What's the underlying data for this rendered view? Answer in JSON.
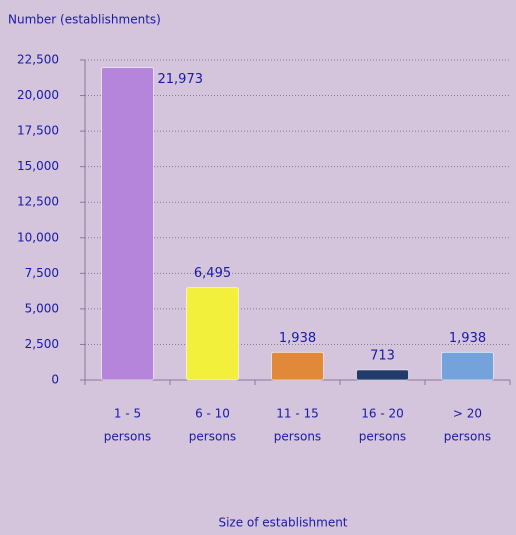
{
  "chart_data": {
    "type": "bar",
    "y_axis_label": "Number (establishments)",
    "x_axis_label": "Size of establishment",
    "categories": [
      [
        "1 - 5",
        "persons"
      ],
      [
        "6 - 10",
        "persons"
      ],
      [
        "11 - 15",
        "persons"
      ],
      [
        "16 - 20",
        "persons"
      ],
      [
        "> 20",
        "persons"
      ]
    ],
    "values": [
      21973,
      6495,
      1938,
      713,
      1938
    ],
    "value_labels": [
      "21,973",
      "6,495",
      "1,938",
      "713",
      "1,938"
    ],
    "colors": [
      "#b585dc",
      "#f2f03a",
      "#e2883a",
      "#223b6c",
      "#74a2da"
    ],
    "ylim": [
      0,
      22500
    ],
    "yticks": [
      0,
      {
        "value": 2500,
        "label": "2,500"
      },
      {
        "value": 5000,
        "label": "5,000"
      },
      {
        "value": 7500,
        "label": "7,500"
      },
      {
        "value": 10000,
        "label": "10,000"
      },
      {
        "value": 12500,
        "label": "12,500"
      },
      {
        "value": 15000,
        "label": "15,000"
      },
      {
        "value": 17500,
        "label": "17,500"
      },
      {
        "value": 20000,
        "label": "20,000"
      },
      {
        "value": 22500,
        "label": "22,500"
      }
    ],
    "grid": true
  }
}
